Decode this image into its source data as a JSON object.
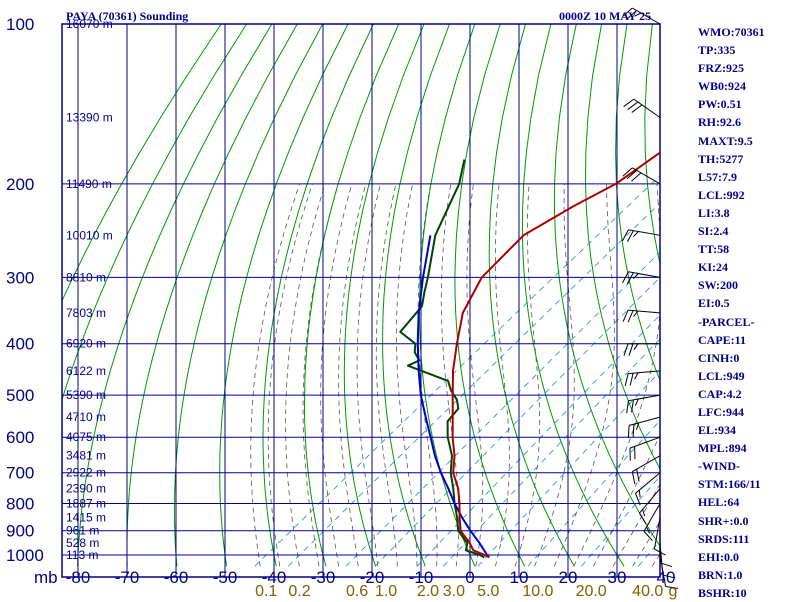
{
  "header": {
    "title": "PAYA (70361) Sounding",
    "datetime": "0000Z 10 MAY 25"
  },
  "colors": {
    "frame": "#00008b",
    "isotherm": "#00008b",
    "dry_adiabat": "#009900",
    "moist_adiabat": "#555555",
    "mixing_ratio": "#3399cc",
    "temperature": "#aa0000",
    "dewpoint": "#004400",
    "parcel": "#0000cc",
    "wind_barb": "#000000",
    "axis_label": "#00008b",
    "mixing_ratio_label": "#806000"
  },
  "chart_data": {
    "type": "skew-t",
    "pressure_unit_label": "mb",
    "pressure_levels_mb": [
      100,
      200,
      300,
      400,
      500,
      600,
      700,
      800,
      900,
      1000
    ],
    "temperature_ticks_c": [
      -80,
      -70,
      -60,
      -50,
      -40,
      -30,
      -20,
      -10,
      0,
      10,
      20,
      30,
      40
    ],
    "temperature_tick_labels": [
      "-80",
      "-70",
      "-60",
      "-50",
      "-40",
      "-30",
      "-20",
      "-10",
      "0",
      "10",
      "20",
      "30",
      "40"
    ],
    "mixing_ratio_labels": [
      "0.1",
      "0.2",
      "0.6",
      "1.0",
      "2.0",
      "3.0",
      "5.0",
      "10.0",
      "20.0",
      "40.0",
      "g"
    ],
    "height_labels": [
      {
        "p": 100,
        "label": "16070 m"
      },
      {
        "p": 150,
        "label": "13390 m"
      },
      {
        "p": 200,
        "label": "11490 m"
      },
      {
        "p": 250,
        "label": "10010 m"
      },
      {
        "p": 300,
        "label": "8810 m"
      },
      {
        "p": 350,
        "label": "7803 m"
      },
      {
        "p": 400,
        "label": "6920 m"
      },
      {
        "p": 450,
        "label": "6122 m"
      },
      {
        "p": 500,
        "label": "5390 m"
      },
      {
        "p": 550,
        "label": "4710 m"
      },
      {
        "p": 600,
        "label": "4075 m"
      },
      {
        "p": 650,
        "label": "3481 m"
      },
      {
        "p": 700,
        "label": "2922 m"
      },
      {
        "p": 750,
        "label": "2390 m"
      },
      {
        "p": 800,
        "label": "1887 m"
      },
      {
        "p": 850,
        "label": "1415 m"
      },
      {
        "p": 900,
        "label": "961 m"
      },
      {
        "p": 950,
        "label": "528 m"
      },
      {
        "p": 1000,
        "label": "113 m"
      }
    ],
    "temperature_profile": [
      [
        1010,
        4.5
      ],
      [
        1000,
        3.0
      ],
      [
        980,
        -0.5
      ],
      [
        950,
        -3.0
      ],
      [
        900,
        -8.0
      ],
      [
        850,
        -11.5
      ],
      [
        800,
        -15.0
      ],
      [
        750,
        -19.0
      ],
      [
        700,
        -24.0
      ],
      [
        650,
        -28.0
      ],
      [
        600,
        -33.0
      ],
      [
        550,
        -38.0
      ],
      [
        500,
        -43.5
      ],
      [
        450,
        -49.5
      ],
      [
        400,
        -55.5
      ],
      [
        350,
        -62.0
      ],
      [
        300,
        -67.0
      ],
      [
        250,
        -69.0
      ],
      [
        220,
        -66.0
      ],
      [
        200,
        -63.0
      ],
      [
        150,
        -60.5
      ],
      [
        100,
        -56.0
      ]
    ],
    "dewpoint_profile": [
      [
        1010,
        3.5
      ],
      [
        1000,
        2.0
      ],
      [
        980,
        -2.0
      ],
      [
        950,
        -3.5
      ],
      [
        900,
        -8.5
      ],
      [
        850,
        -12.0
      ],
      [
        800,
        -16.0
      ],
      [
        750,
        -20.0
      ],
      [
        700,
        -24.5
      ],
      [
        650,
        -28.5
      ],
      [
        600,
        -34.0
      ],
      [
        560,
        -38.0
      ],
      [
        530,
        -39.0
      ],
      [
        510,
        -41.5
      ],
      [
        490,
        -45.0
      ],
      [
        470,
        -48.0
      ],
      [
        440,
        -60.0
      ],
      [
        430,
        -59.0
      ],
      [
        415,
        -62.0
      ],
      [
        400,
        -64.0
      ],
      [
        380,
        -70.0
      ],
      [
        340,
        -72.0
      ],
      [
        320,
        -75.0
      ],
      [
        300,
        -78.0
      ],
      [
        250,
        -87.0
      ],
      [
        200,
        -95.0
      ],
      [
        180,
        -100.0
      ]
    ],
    "parcel_profile": [
      [
        1010,
        4.5
      ],
      [
        1000,
        3.5
      ],
      [
        950,
        -1.0
      ],
      [
        900,
        -6.0
      ],
      [
        850,
        -11.0
      ],
      [
        800,
        -16.0
      ],
      [
        750,
        -21.0
      ],
      [
        700,
        -26.5
      ],
      [
        650,
        -32.0
      ],
      [
        600,
        -37.5
      ],
      [
        550,
        -43.5
      ],
      [
        500,
        -50.0
      ],
      [
        450,
        -56.5
      ],
      [
        400,
        -63.5
      ],
      [
        350,
        -71.0
      ],
      [
        300,
        -79.0
      ],
      [
        250,
        -88.0
      ]
    ],
    "wind_barbs": [
      {
        "p": 1000,
        "dir": 170,
        "spd": 10
      },
      {
        "p": 950,
        "dir": 175,
        "spd": 10
      },
      {
        "p": 900,
        "dir": 180,
        "spd": 10
      },
      {
        "p": 850,
        "dir": 190,
        "spd": 10
      },
      {
        "p": 800,
        "dir": 210,
        "spd": 15
      },
      {
        "p": 750,
        "dir": 220,
        "spd": 15
      },
      {
        "p": 700,
        "dir": 230,
        "spd": 15
      },
      {
        "p": 650,
        "dir": 240,
        "spd": 20
      },
      {
        "p": 600,
        "dir": 250,
        "spd": 20
      },
      {
        "p": 550,
        "dir": 255,
        "spd": 25
      },
      {
        "p": 500,
        "dir": 260,
        "spd": 25
      },
      {
        "p": 450,
        "dir": 265,
        "spd": 25
      },
      {
        "p": 400,
        "dir": 270,
        "spd": 25
      },
      {
        "p": 350,
        "dir": 275,
        "spd": 25
      },
      {
        "p": 300,
        "dir": 280,
        "spd": 25
      },
      {
        "p": 250,
        "dir": 280,
        "spd": 25
      },
      {
        "p": 200,
        "dir": 300,
        "spd": 30
      },
      {
        "p": 150,
        "dir": 305,
        "spd": 30
      },
      {
        "p": 100,
        "dir": 300,
        "spd": 25
      }
    ],
    "indices": [
      "WMO:70361",
      "TP:335",
      "FRZ:925",
      "WB0:924",
      "PW:0.51",
      "RH:92.6",
      "MAXT:9.5",
      "TH:5277",
      "L57:7.9",
      "LCL:992",
      "LI:3.8",
      "SI:2.4",
      "TT:58",
      "KI:24",
      "SW:200",
      "EI:0.5",
      "-PARCEL-",
      "CAPE:11",
      "CINH:0",
      "LCL:949",
      "CAP:4.2",
      "LFC:944",
      "EL:934",
      "MPL:894",
      "-WIND-",
      "STM:166/11",
      "HEL:64",
      "SHR+:0.0",
      "SRDS:111",
      "EHI:0.0",
      "BRN:1.0",
      "BSHR:10"
    ]
  }
}
